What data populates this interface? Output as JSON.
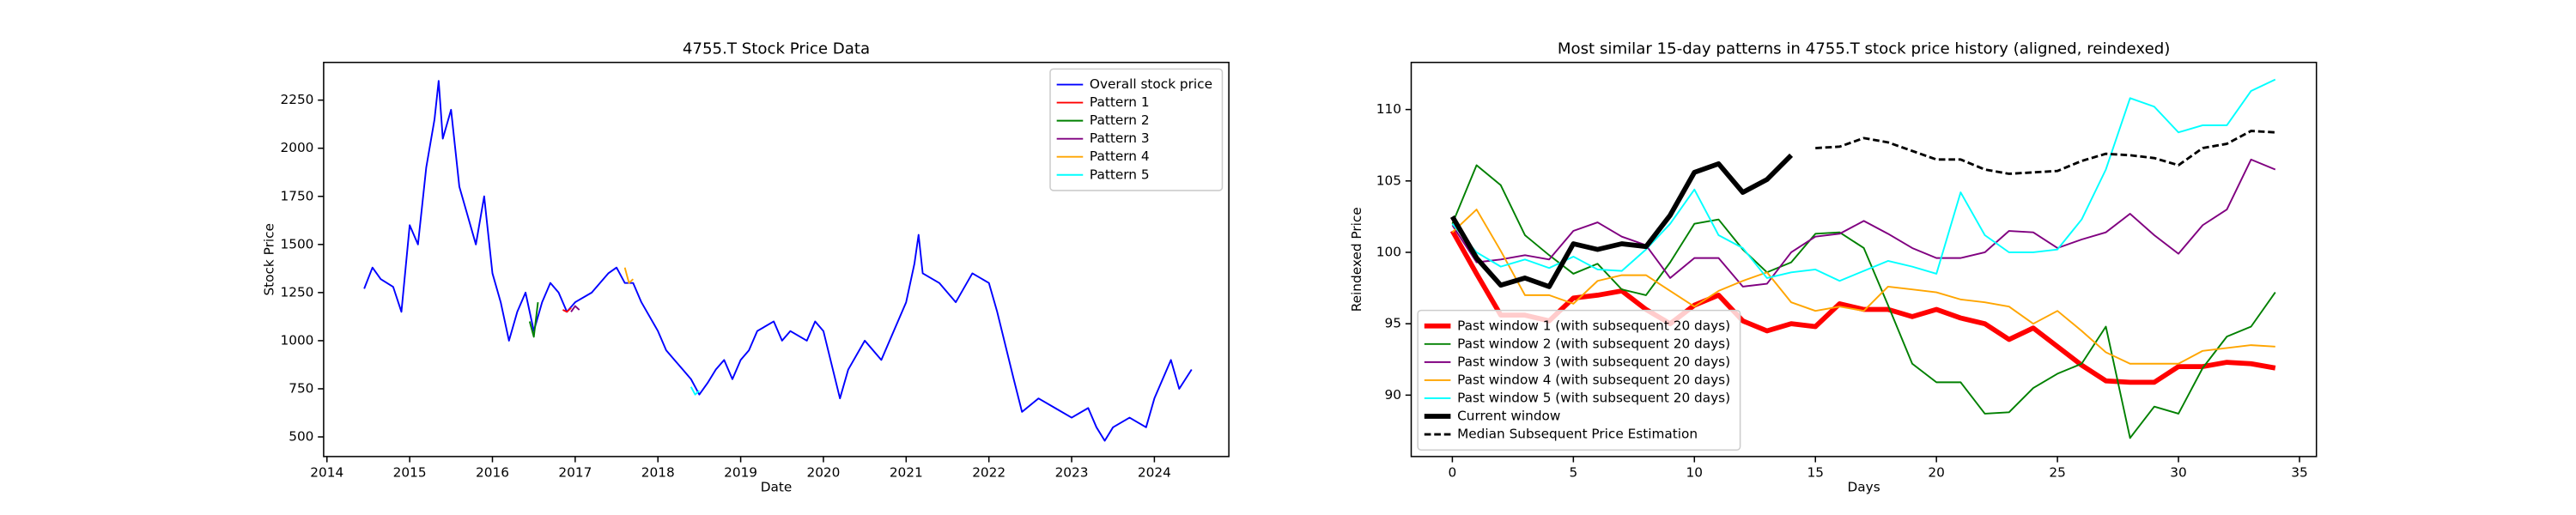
{
  "chart_data": [
    {
      "type": "line",
      "title": "4755.T Stock Price Data",
      "xlabel": "Date",
      "ylabel": "Stock Price",
      "xlim": [
        2013.96,
        2024.9
      ],
      "ylim": [
        398,
        2446
      ],
      "xticks": [
        2014,
        2015,
        2016,
        2017,
        2018,
        2019,
        2020,
        2021,
        2022,
        2023,
        2024
      ],
      "yticks": [
        500,
        750,
        1000,
        1250,
        1500,
        1750,
        2000,
        2250
      ],
      "legend": "upper right",
      "series": [
        {
          "name": "Overall stock price",
          "color": "#0000ff",
          "linewidth": 1,
          "x": [
            2014.45,
            2014.55,
            2014.65,
            2014.8,
            2014.9,
            2015.0,
            2015.1,
            2015.2,
            2015.3,
            2015.35,
            2015.4,
            2015.5,
            2015.6,
            2015.7,
            2015.8,
            2015.9,
            2016.0,
            2016.1,
            2016.2,
            2016.3,
            2016.4,
            2016.5,
            2016.6,
            2016.7,
            2016.8,
            2016.9,
            2017.0,
            2017.2,
            2017.4,
            2017.5,
            2017.6,
            2017.7,
            2017.8,
            2018.0,
            2018.1,
            2018.2,
            2018.3,
            2018.4,
            2018.5,
            2018.6,
            2018.7,
            2018.8,
            2018.9,
            2019.0,
            2019.1,
            2019.2,
            2019.4,
            2019.5,
            2019.6,
            2019.8,
            2019.9,
            2020.0,
            2020.2,
            2020.3,
            2020.5,
            2020.7,
            2020.9,
            2021.0,
            2021.1,
            2021.15,
            2021.2,
            2021.4,
            2021.6,
            2021.8,
            2022.0,
            2022.1,
            2022.3,
            2022.4,
            2022.6,
            2022.8,
            2023.0,
            2023.2,
            2023.3,
            2023.4,
            2023.5,
            2023.7,
            2023.9,
            2024.0,
            2024.1,
            2024.2,
            2024.3,
            2024.45
          ],
          "values": [
            1270,
            1380,
            1320,
            1280,
            1150,
            1600,
            1500,
            1900,
            2150,
            2350,
            2050,
            2200,
            1800,
            1650,
            1500,
            1750,
            1350,
            1200,
            1000,
            1150,
            1250,
            1050,
            1200,
            1300,
            1250,
            1150,
            1200,
            1250,
            1350,
            1380,
            1300,
            1300,
            1200,
            1050,
            950,
            900,
            850,
            800,
            720,
            780,
            850,
            900,
            800,
            900,
            950,
            1050,
            1100,
            1000,
            1050,
            1000,
            1100,
            1050,
            700,
            850,
            1000,
            900,
            1100,
            1200,
            1400,
            1550,
            1350,
            1300,
            1200,
            1350,
            1300,
            1150,
            800,
            630,
            700,
            650,
            600,
            650,
            550,
            480,
            550,
            600,
            550,
            700,
            800,
            900,
            750,
            850
          ]
        },
        {
          "name": "Pattern 1",
          "color": "#ff0000",
          "linewidth": 1,
          "x": [
            2016.85,
            2016.9,
            2016.95
          ],
          "values": [
            1160,
            1150,
            1170
          ]
        },
        {
          "name": "Pattern 2",
          "color": "#008000",
          "linewidth": 1,
          "x": [
            2016.45,
            2016.5,
            2016.55
          ],
          "values": [
            1100,
            1020,
            1200
          ]
        },
        {
          "name": "Pattern 3",
          "color": "#800080",
          "linewidth": 1,
          "x": [
            2016.95,
            2017.0,
            2017.05
          ],
          "values": [
            1150,
            1180,
            1160
          ]
        },
        {
          "name": "Pattern 4",
          "color": "#ffa500",
          "linewidth": 1,
          "x": [
            2017.6,
            2017.65,
            2017.7
          ],
          "values": [
            1380,
            1300,
            1320
          ]
        },
        {
          "name": "Pattern 5",
          "color": "#00ffff",
          "linewidth": 1,
          "x": [
            2018.4,
            2018.45,
            2018.5
          ],
          "values": [
            760,
            720,
            740
          ]
        }
      ]
    },
    {
      "type": "line",
      "title": "Most similar 15-day patterns in 4755.T stock price history (aligned, reindexed)",
      "xlabel": "Days",
      "ylabel": "Reindexed Price",
      "xlim": [
        -1.7,
        35.7
      ],
      "ylim": [
        85.7,
        113.3
      ],
      "xticks": [
        0,
        5,
        10,
        15,
        20,
        25,
        30,
        35
      ],
      "yticks": [
        90,
        95,
        100,
        105,
        110
      ],
      "legend": "lower left",
      "series": [
        {
          "name": "Past window 1 (with subsequent 20 days)",
          "color": "#ff0000",
          "linewidth": 3,
          "x": [
            0,
            1,
            2,
            3,
            4,
            5,
            6,
            7,
            8,
            9,
            10,
            11,
            12,
            13,
            14,
            15,
            16,
            17,
            18,
            19,
            20,
            21,
            22,
            23,
            24,
            25,
            26,
            27,
            28,
            29,
            30,
            31,
            32,
            33,
            34
          ],
          "values": [
            101.5,
            98.5,
            95.6,
            95.6,
            95.2,
            96.8,
            97.0,
            97.3,
            96.0,
            95.0,
            96.3,
            97.0,
            95.2,
            94.5,
            95.0,
            94.8,
            96.4,
            96.0,
            96.0,
            95.5,
            96.0,
            95.4,
            95.0,
            93.9,
            94.7,
            93.4,
            92.1,
            91.0,
            90.9,
            90.9,
            92.0,
            92.0,
            92.3,
            92.2,
            91.9
          ]
        },
        {
          "name": "Past window 2 (with subsequent 20 days)",
          "color": "#008000",
          "linewidth": 1,
          "x": [
            0,
            1,
            2,
            3,
            4,
            5,
            6,
            7,
            8,
            9,
            10,
            11,
            12,
            13,
            14,
            15,
            16,
            17,
            18,
            19,
            20,
            21,
            22,
            23,
            24,
            25,
            26,
            27,
            28,
            29,
            30,
            31,
            32,
            33,
            34
          ],
          "values": [
            102.0,
            106.1,
            104.7,
            101.2,
            99.8,
            98.5,
            99.2,
            97.4,
            97.0,
            99.3,
            102.0,
            102.3,
            100.2,
            98.6,
            99.3,
            101.3,
            101.4,
            100.3,
            96.3,
            92.2,
            90.9,
            90.9,
            88.7,
            88.8,
            90.5,
            91.5,
            92.2,
            94.8,
            87.0,
            89.2,
            88.7,
            91.9,
            94.1,
            94.8,
            97.2
          ]
        },
        {
          "name": "Past window 3 (with subsequent 20 days)",
          "color": "#800080",
          "linewidth": 1,
          "x": [
            0,
            1,
            2,
            3,
            4,
            5,
            6,
            7,
            8,
            9,
            10,
            11,
            12,
            13,
            14,
            15,
            16,
            17,
            18,
            19,
            20,
            21,
            22,
            23,
            24,
            25,
            26,
            27,
            28,
            29,
            30,
            31,
            32,
            33,
            34
          ],
          "values": [
            101.9,
            99.3,
            99.5,
            99.8,
            99.5,
            101.5,
            102.1,
            101.1,
            100.5,
            98.2,
            99.6,
            99.6,
            97.6,
            97.8,
            100.0,
            101.1,
            101.3,
            102.2,
            101.3,
            100.3,
            99.6,
            99.6,
            100.0,
            101.5,
            101.4,
            100.3,
            100.9,
            101.4,
            102.7,
            101.2,
            99.9,
            101.9,
            103.0,
            106.5,
            105.8
          ]
        },
        {
          "name": "Past window 4 (with subsequent 20 days)",
          "color": "#ffa500",
          "linewidth": 1,
          "x": [
            0,
            1,
            2,
            3,
            4,
            5,
            6,
            7,
            8,
            9,
            10,
            11,
            12,
            13,
            14,
            15,
            16,
            17,
            18,
            19,
            20,
            21,
            22,
            23,
            24,
            25,
            26,
            27,
            28,
            29,
            30,
            31,
            32,
            33,
            34
          ],
          "values": [
            101.4,
            103.0,
            100.1,
            97.0,
            97.0,
            96.4,
            98.0,
            98.4,
            98.4,
            97.3,
            96.2,
            97.3,
            98.0,
            98.6,
            96.5,
            95.9,
            96.2,
            95.9,
            97.6,
            97.4,
            97.2,
            96.7,
            96.5,
            96.2,
            95.0,
            95.9,
            94.5,
            93.0,
            92.2,
            92.2,
            92.2,
            93.1,
            93.3,
            93.5,
            93.4
          ]
        },
        {
          "name": "Past window 5 (with subsequent 20 days)",
          "color": "#00ffff",
          "linewidth": 1,
          "x": [
            0,
            1,
            2,
            3,
            4,
            5,
            6,
            7,
            8,
            9,
            10,
            11,
            12,
            13,
            14,
            15,
            16,
            17,
            18,
            19,
            20,
            21,
            22,
            23,
            24,
            25,
            26,
            27,
            28,
            29,
            30,
            31,
            32,
            33,
            34
          ],
          "values": [
            102.0,
            100.0,
            99.0,
            99.5,
            98.9,
            99.7,
            98.8,
            98.7,
            100.2,
            102.0,
            104.4,
            101.2,
            100.3,
            98.2,
            98.6,
            98.8,
            98.0,
            98.7,
            99.4,
            99.0,
            98.5,
            104.2,
            101.2,
            100.0,
            100.0,
            100.2,
            102.3,
            105.8,
            110.8,
            110.2,
            108.4,
            108.9,
            108.9,
            111.3,
            112.1
          ]
        },
        {
          "name": "Current window",
          "color": "#000000",
          "linewidth": 3,
          "x": [
            0,
            1,
            2,
            3,
            4,
            5,
            6,
            7,
            8,
            9,
            10,
            11,
            12,
            13,
            14
          ],
          "values": [
            102.5,
            99.6,
            97.7,
            98.2,
            97.6,
            100.6,
            100.2,
            100.6,
            100.4,
            102.6,
            105.6,
            106.2,
            104.2,
            105.1,
            106.8
          ]
        },
        {
          "name": "Median Subsequent Price Estimation",
          "color": "#000000",
          "linewidth": 1.5,
          "linestyle": "dashed",
          "x": [
            15,
            16,
            17,
            18,
            19,
            20,
            21,
            22,
            23,
            24,
            25,
            26,
            27,
            28,
            29,
            30,
            31,
            32,
            33,
            34
          ],
          "values": [
            107.3,
            107.4,
            108.0,
            107.7,
            107.1,
            106.5,
            106.5,
            105.8,
            105.5,
            105.6,
            105.7,
            106.4,
            106.9,
            106.8,
            106.6,
            106.1,
            107.3,
            107.6,
            108.5,
            108.4
          ]
        }
      ]
    }
  ]
}
